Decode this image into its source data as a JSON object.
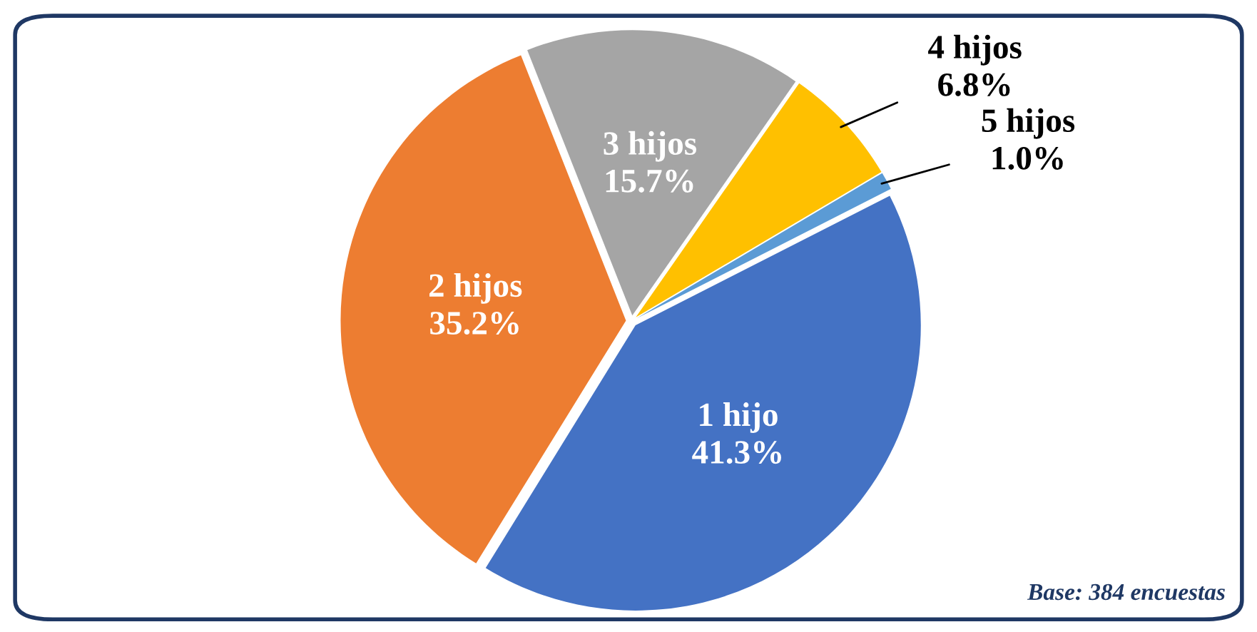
{
  "chart_data": {
    "type": "pie",
    "categories": [
      "1 hijo",
      "2 hijos",
      "3 hijos",
      "4 hijos",
      "5 hijos"
    ],
    "values": [
      41.3,
      35.2,
      15.7,
      6.8,
      1.0
    ],
    "colors": [
      "#4472c4",
      "#ed7d31",
      "#a5a5a5",
      "#ffc000",
      "#5b9bd5"
    ],
    "value_labels": [
      "41.3%",
      "35.2%",
      "15.7%",
      "6.8%",
      "1.0%"
    ],
    "legend": false,
    "annotations": [
      "Base: 384 encuestas"
    ]
  }
}
